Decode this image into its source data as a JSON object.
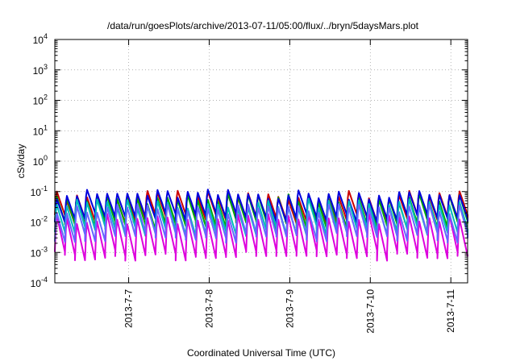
{
  "chart_data": {
    "type": "line",
    "title": "/data/run/goesPlots/archive/2013-07-11/05:00/flux/../bryn/5daysMars.plot",
    "xlabel": "Coordinated Universal Time (UTC)",
    "ylabel": "cSv/day",
    "yscale": "log",
    "ylim": [
      0.0001,
      10000
    ],
    "xlim": [
      "2013-07-06T02:00",
      "2013-07-11T05:00"
    ],
    "y_ticks": [
      {
        "base": "10",
        "exp": "-4",
        "value": 0.0001
      },
      {
        "base": "10",
        "exp": "-3",
        "value": 0.001
      },
      {
        "base": "10",
        "exp": "-2",
        "value": 0.01
      },
      {
        "base": "10",
        "exp": "-1",
        "value": 0.1
      },
      {
        "base": "10",
        "exp": "0",
        "value": 1
      },
      {
        "base": "10",
        "exp": "1",
        "value": 10
      },
      {
        "base": "10",
        "exp": "2",
        "value": 100
      },
      {
        "base": "10",
        "exp": "3",
        "value": 1000
      },
      {
        "base": "10",
        "exp": "4",
        "value": 10000
      }
    ],
    "x_ticks": [
      {
        "label": "2013-7-7",
        "value": "2013-07-07T00:00"
      },
      {
        "label": "2013-7-8",
        "value": "2013-07-08T00:00"
      },
      {
        "label": "2013-7-9",
        "value": "2013-07-09T00:00"
      },
      {
        "label": "2013-7-10",
        "value": "2013-07-10T00:00"
      },
      {
        "label": "2013-7-11",
        "value": "2013-07-11T00:00"
      }
    ],
    "grid": true,
    "legend": "none",
    "cycle_hours": 3,
    "series": [
      {
        "color": "#cc0000",
        "peak": 0.08,
        "trough": 0.012
      },
      {
        "color": "#00aa00",
        "peak": 0.065,
        "trough": 0.008
      },
      {
        "color": "#0000dd",
        "peak": 0.09,
        "trough": 0.014
      },
      {
        "color": "#00bbbb",
        "peak": 0.045,
        "trough": 0.005
      },
      {
        "color": "#dd00dd",
        "peak": 0.015,
        "trough": 0.0008
      },
      {
        "color": "#6666ff",
        "peak": 0.03,
        "trough": 0.003
      }
    ]
  }
}
